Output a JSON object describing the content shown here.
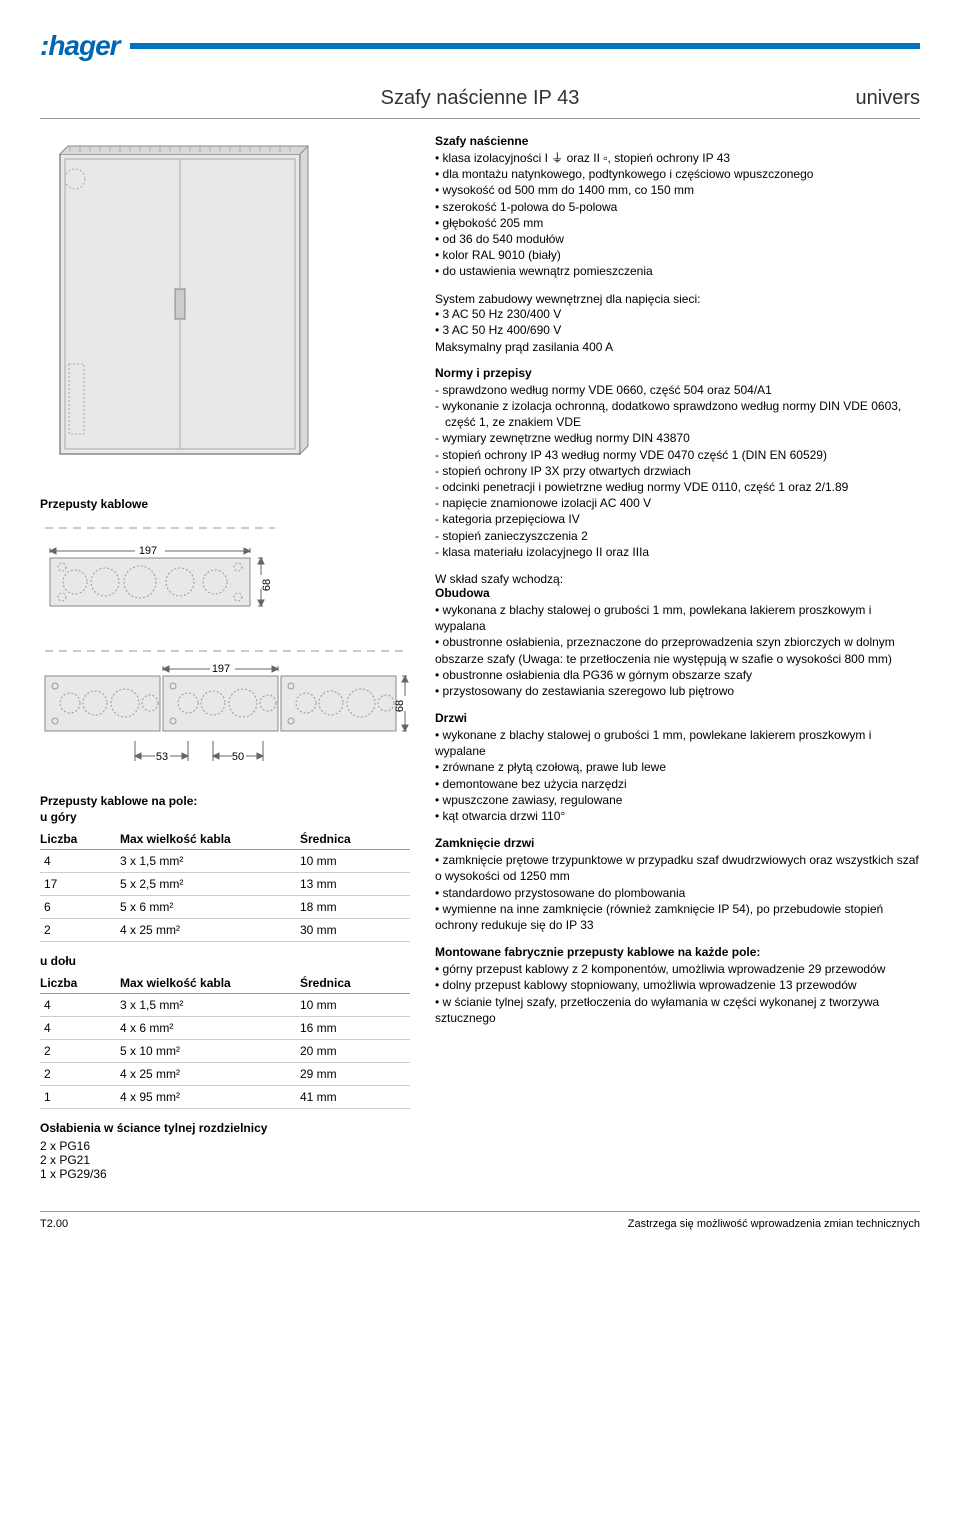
{
  "header": {
    "logo": ":hager",
    "title": "Szafy naścienne IP 43",
    "brand": "univers"
  },
  "left": {
    "przepusty_title": "Przepusty kablowe",
    "diagram1": {
      "dim_h": "197",
      "dim_v": "68"
    },
    "diagram2": {
      "dim_h": "197",
      "dim_v": "68",
      "dim_a": "53",
      "dim_b": "50"
    },
    "table_top_title": "Przepusty kablowe na pole:",
    "table_top_sub": "u góry",
    "table_headers": {
      "c1": "Liczba",
      "c2": "Max wielkość kabla",
      "c3": "Średnica"
    },
    "table_top_rows": [
      {
        "c1": "4",
        "c2": "3 x 1,5 mm²",
        "c3": "10 mm"
      },
      {
        "c1": "17",
        "c2": "5 x 2,5 mm²",
        "c3": "13 mm"
      },
      {
        "c1": "6",
        "c2": "5 x 6 mm²",
        "c3": "18 mm"
      },
      {
        "c1": "2",
        "c2": "4 x 25 mm²",
        "c3": "30 mm"
      }
    ],
    "table_bottom_title": "u dołu",
    "table_bottom_rows": [
      {
        "c1": "4",
        "c2": "3 x 1,5 mm²",
        "c3": "10 mm"
      },
      {
        "c1": "4",
        "c2": "4 x 6 mm²",
        "c3": "16 mm"
      },
      {
        "c1": "2",
        "c2": "5 x 10 mm²",
        "c3": "20 mm"
      },
      {
        "c1": "2",
        "c2": "4 x 25 mm²",
        "c3": "29 mm"
      },
      {
        "c1": "1",
        "c2": "4 x 95 mm²",
        "c3": "41 mm"
      }
    ],
    "oslab_title": "Osłabienia w ściance tylnej rozdzielnicy",
    "oslab_lines": [
      "2 x PG16",
      "2 x PG21",
      "1 x PG29/36"
    ]
  },
  "right": {
    "s1_title": "Szafy naścienne",
    "s1_bullets": [
      "klasa izolacyjności I ⏚ oraz II ▫, stopień ochrony IP 43",
      "dla montażu natynkowego, podtynkowego i częściowo wpuszczonego",
      "wysokość od 500 mm do 1400 mm, co 150 mm",
      "szerokość 1-polowa do 5-polowa",
      "głębokość 205 mm",
      "od 36 do 540 modułów",
      "kolor RAL 9010 (biały)",
      "do ustawienia wewnątrz pomieszczenia"
    ],
    "s2_line1": "System zabudowy wewnętrznej dla napięcia sieci:",
    "s2_bullets": [
      "3 AC 50 Hz 230/400 V",
      "3 AC 50 Hz 400/690 V"
    ],
    "s2_line2": "Maksymalny prąd zasilania 400 A",
    "s3_title": "Normy i przepisy",
    "s3_dashes": [
      "- sprawdzono według normy VDE 0660, część 504 oraz 504/A1",
      "- wykonanie z izolacja ochronną, dodatkowo sprawdzono według normy DIN VDE 0603, część 1, ze znakiem VDE",
      "- wymiary zewnętrzne według normy DIN 43870",
      "- stopień ochrony IP 43 według normy VDE 0470 część 1 (DIN EN 60529)",
      "- stopień ochrony IP 3X przy otwartych drzwiach",
      "- odcinki penetracji i powietrzne według normy VDE 0110, część 1 oraz 2/1.89",
      "- napięcie znamionowe izolacji AC 400 V",
      "- kategoria przepięciowa IV",
      "- stopień zanieczyszczenia 2",
      "- klasa materiału izolacyjnego II oraz IIIa"
    ],
    "s4_line1": "W skład szafy wchodzą:",
    "s4_title": "Obudowa",
    "s4_bullets": [
      "wykonana z blachy stalowej o grubości 1 mm, powlekana lakierem proszkowym i wypalana",
      "obustronne osłabienia, przeznaczone do przeprowadzenia szyn zbiorczych w dolnym obszarze szafy (Uwaga: te przetłoczenia nie występują w szafie o wysokości 800 mm)",
      "obustronne osłabienia dla PG36 w górnym obszarze szafy",
      "przystosowany do zestawiania szeregowo lub piętrowo"
    ],
    "s5_title": "Drzwi",
    "s5_bullets": [
      "wykonane z blachy stalowej o grubości 1 mm, powlekane lakierem proszkowym i wypalane",
      "zrównane z płytą czołową, prawe lub lewe",
      "demontowane bez użycia narzędzi",
      "wpuszczone zawiasy, regulowane",
      "kąt otwarcia drzwi 110°"
    ],
    "s6_title": "Zamknięcie drzwi",
    "s6_bullets": [
      "zamknięcie prętowe trzypunktowe w przypadku szaf dwudrzwiowych oraz wszystkich szaf o wysokości od 1250 mm",
      "standardowo przystosowane do plombowania",
      "wymienne na inne zamknięcie (również zamknięcie IP 54), po przebudowie stopień ochrony redukuje się do IP 33"
    ],
    "s7_title": "Montowane fabrycznie przepusty kablowe na każde pole:",
    "s7_bullets": [
      "górny przepust kablowy z 2 komponentów, umożliwia wprowadzenie 29 przewodów",
      "dolny przepust kablowy stopniowany, umożliwia wprowadzenie 13 przewodów",
      "w ścianie tylnej szafy, przetłoczenia do wyłamania w części wykonanej z tworzywa sztucznego"
    ]
  },
  "footer": {
    "page": "T2.00",
    "note": "Zastrzega się możliwość wprowadzenia zmian technicznych"
  }
}
